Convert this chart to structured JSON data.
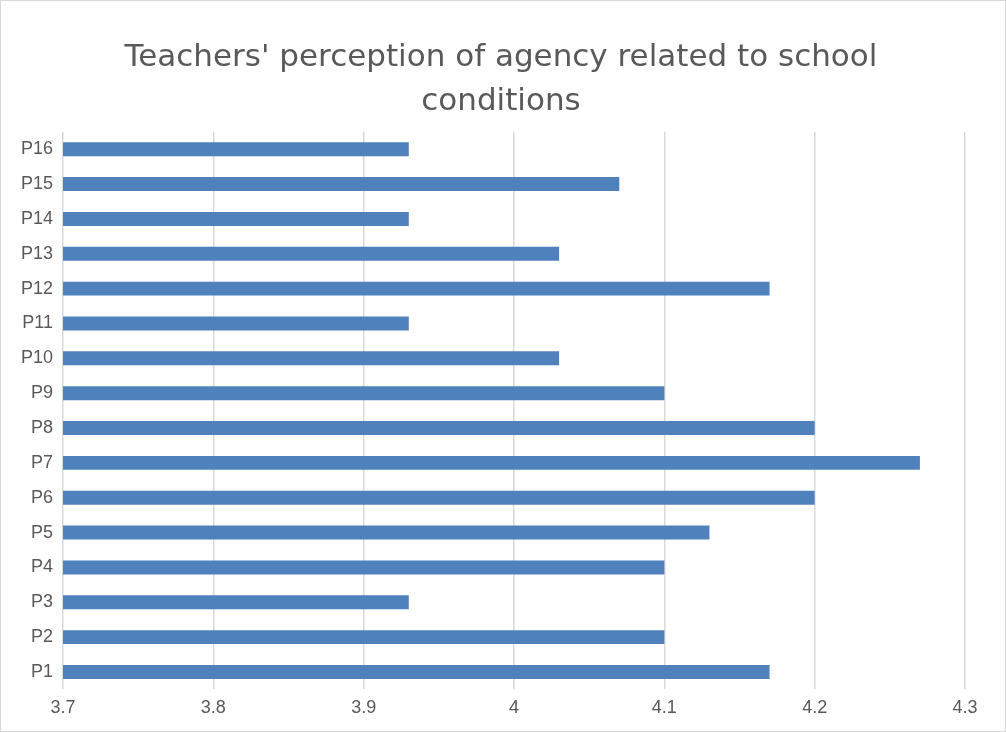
{
  "chart_data": {
    "type": "bar",
    "orientation": "horizontal",
    "title": "Teachers' perception of agency related to school conditions",
    "categories": [
      "P16",
      "P15",
      "P14",
      "P13",
      "P12",
      "P11",
      "P10",
      "P9",
      "P8",
      "P7",
      "P6",
      "P5",
      "P4",
      "P3",
      "P2",
      "P1"
    ],
    "values": [
      3.93,
      4.07,
      3.93,
      4.03,
      4.17,
      3.93,
      4.03,
      4.1,
      4.2,
      4.27,
      4.2,
      4.13,
      4.1,
      3.93,
      4.1,
      4.17
    ],
    "color": "#4f81bd",
    "xlim": [
      3.7,
      4.3
    ],
    "xticks": [
      3.7,
      3.8,
      3.9,
      4,
      4.1,
      4.2,
      4.3
    ],
    "grid": "x"
  }
}
